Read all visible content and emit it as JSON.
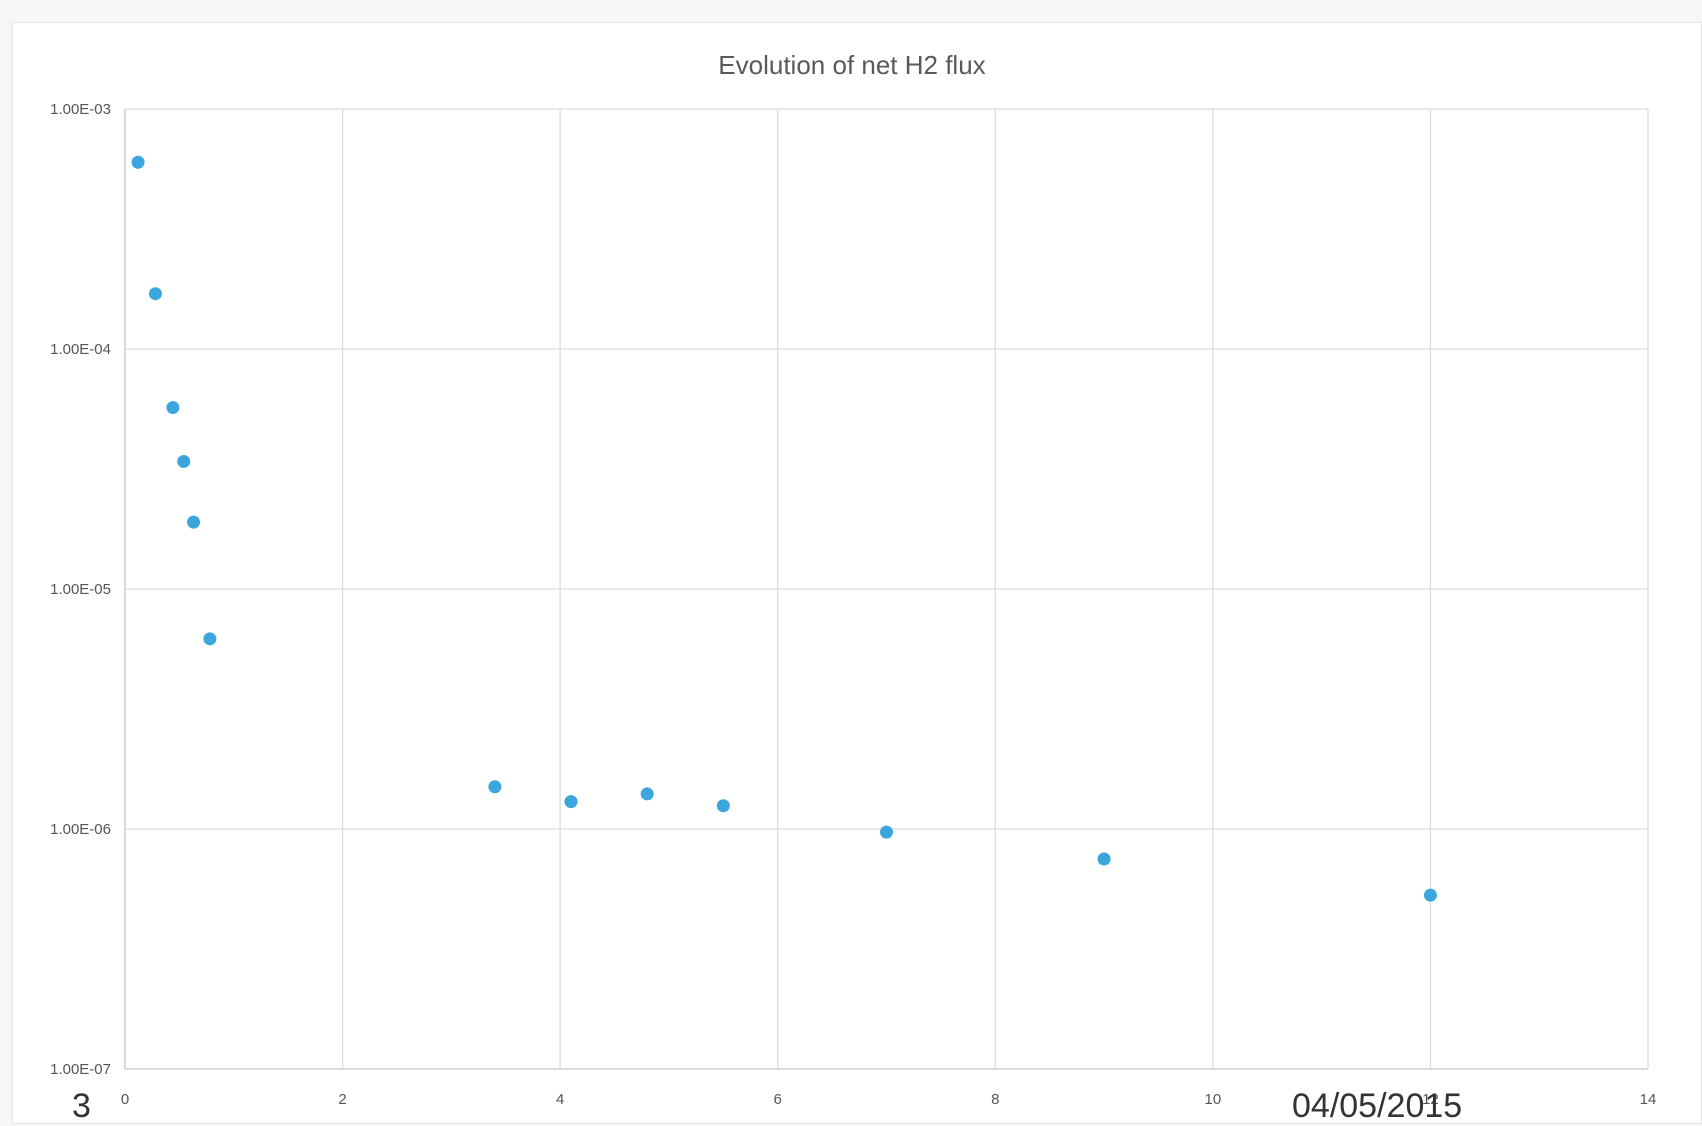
{
  "chart_data": {
    "type": "scatter",
    "title": "Evolution of net H2 flux",
    "xlabel": "",
    "ylabel": "",
    "xlim": [
      0,
      14
    ],
    "ylim": [
      1e-07,
      0.001
    ],
    "yscale": "log",
    "grid": true,
    "legend": "none",
    "x_ticks": [
      "0",
      "2",
      "4",
      "6",
      "8",
      "10",
      "12",
      "14"
    ],
    "y_ticks": [
      "1.00E-07",
      "1.00E-06",
      "1.00E-05",
      "1.00E-04",
      "1.00E-03"
    ],
    "point_color": "#3aa6dd",
    "x": [
      0.12,
      0.28,
      0.44,
      0.54,
      0.63,
      0.78,
      3.4,
      4.1,
      4.8,
      5.5,
      7.0,
      9.0,
      12.0
    ],
    "y": [
      0.0006,
      0.00017,
      5.7e-05,
      3.4e-05,
      1.9e-05,
      6.2e-06,
      1.5e-06,
      1.3e-06,
      1.4e-06,
      1.25e-06,
      9.7e-07,
      7.5e-07,
      5.3e-07
    ]
  },
  "footer": {
    "page_number": "3",
    "date": "04/05/2015"
  }
}
